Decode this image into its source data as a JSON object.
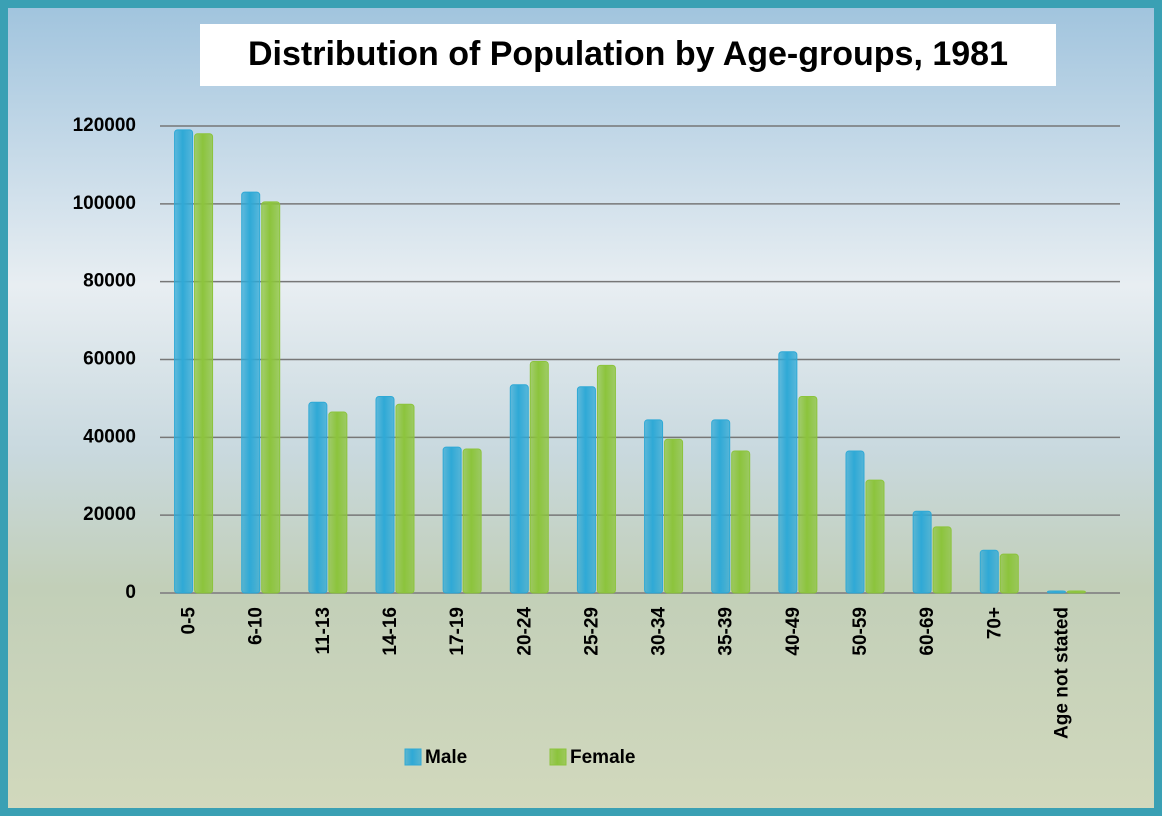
{
  "chart_data": {
    "type": "bar",
    "title": "Distribution of Population by  Age-groups, 1981",
    "categories": [
      "0-5",
      "6-10",
      "11-13",
      "14-16",
      "17-19",
      "20-24",
      "25-29",
      "30-34",
      "35-39",
      "40-49",
      "50-59",
      "60-69",
      "70+",
      "Age not stated"
    ],
    "series": [
      {
        "name": "Male",
        "color": "#2fa9d6",
        "values": [
          119000,
          103000,
          49000,
          50500,
          37500,
          53500,
          53000,
          44500,
          44500,
          62000,
          36500,
          21000,
          11000,
          500
        ]
      },
      {
        "name": "Female",
        "color": "#8cc43c",
        "values": [
          118000,
          100500,
          46500,
          48500,
          37000,
          59500,
          58500,
          39500,
          36500,
          50500,
          29000,
          17000,
          10000,
          500
        ]
      }
    ],
    "ylim": [
      0,
      120000
    ],
    "yticks": [
      0,
      20000,
      40000,
      60000,
      80000,
      100000,
      120000
    ],
    "grid": true
  }
}
